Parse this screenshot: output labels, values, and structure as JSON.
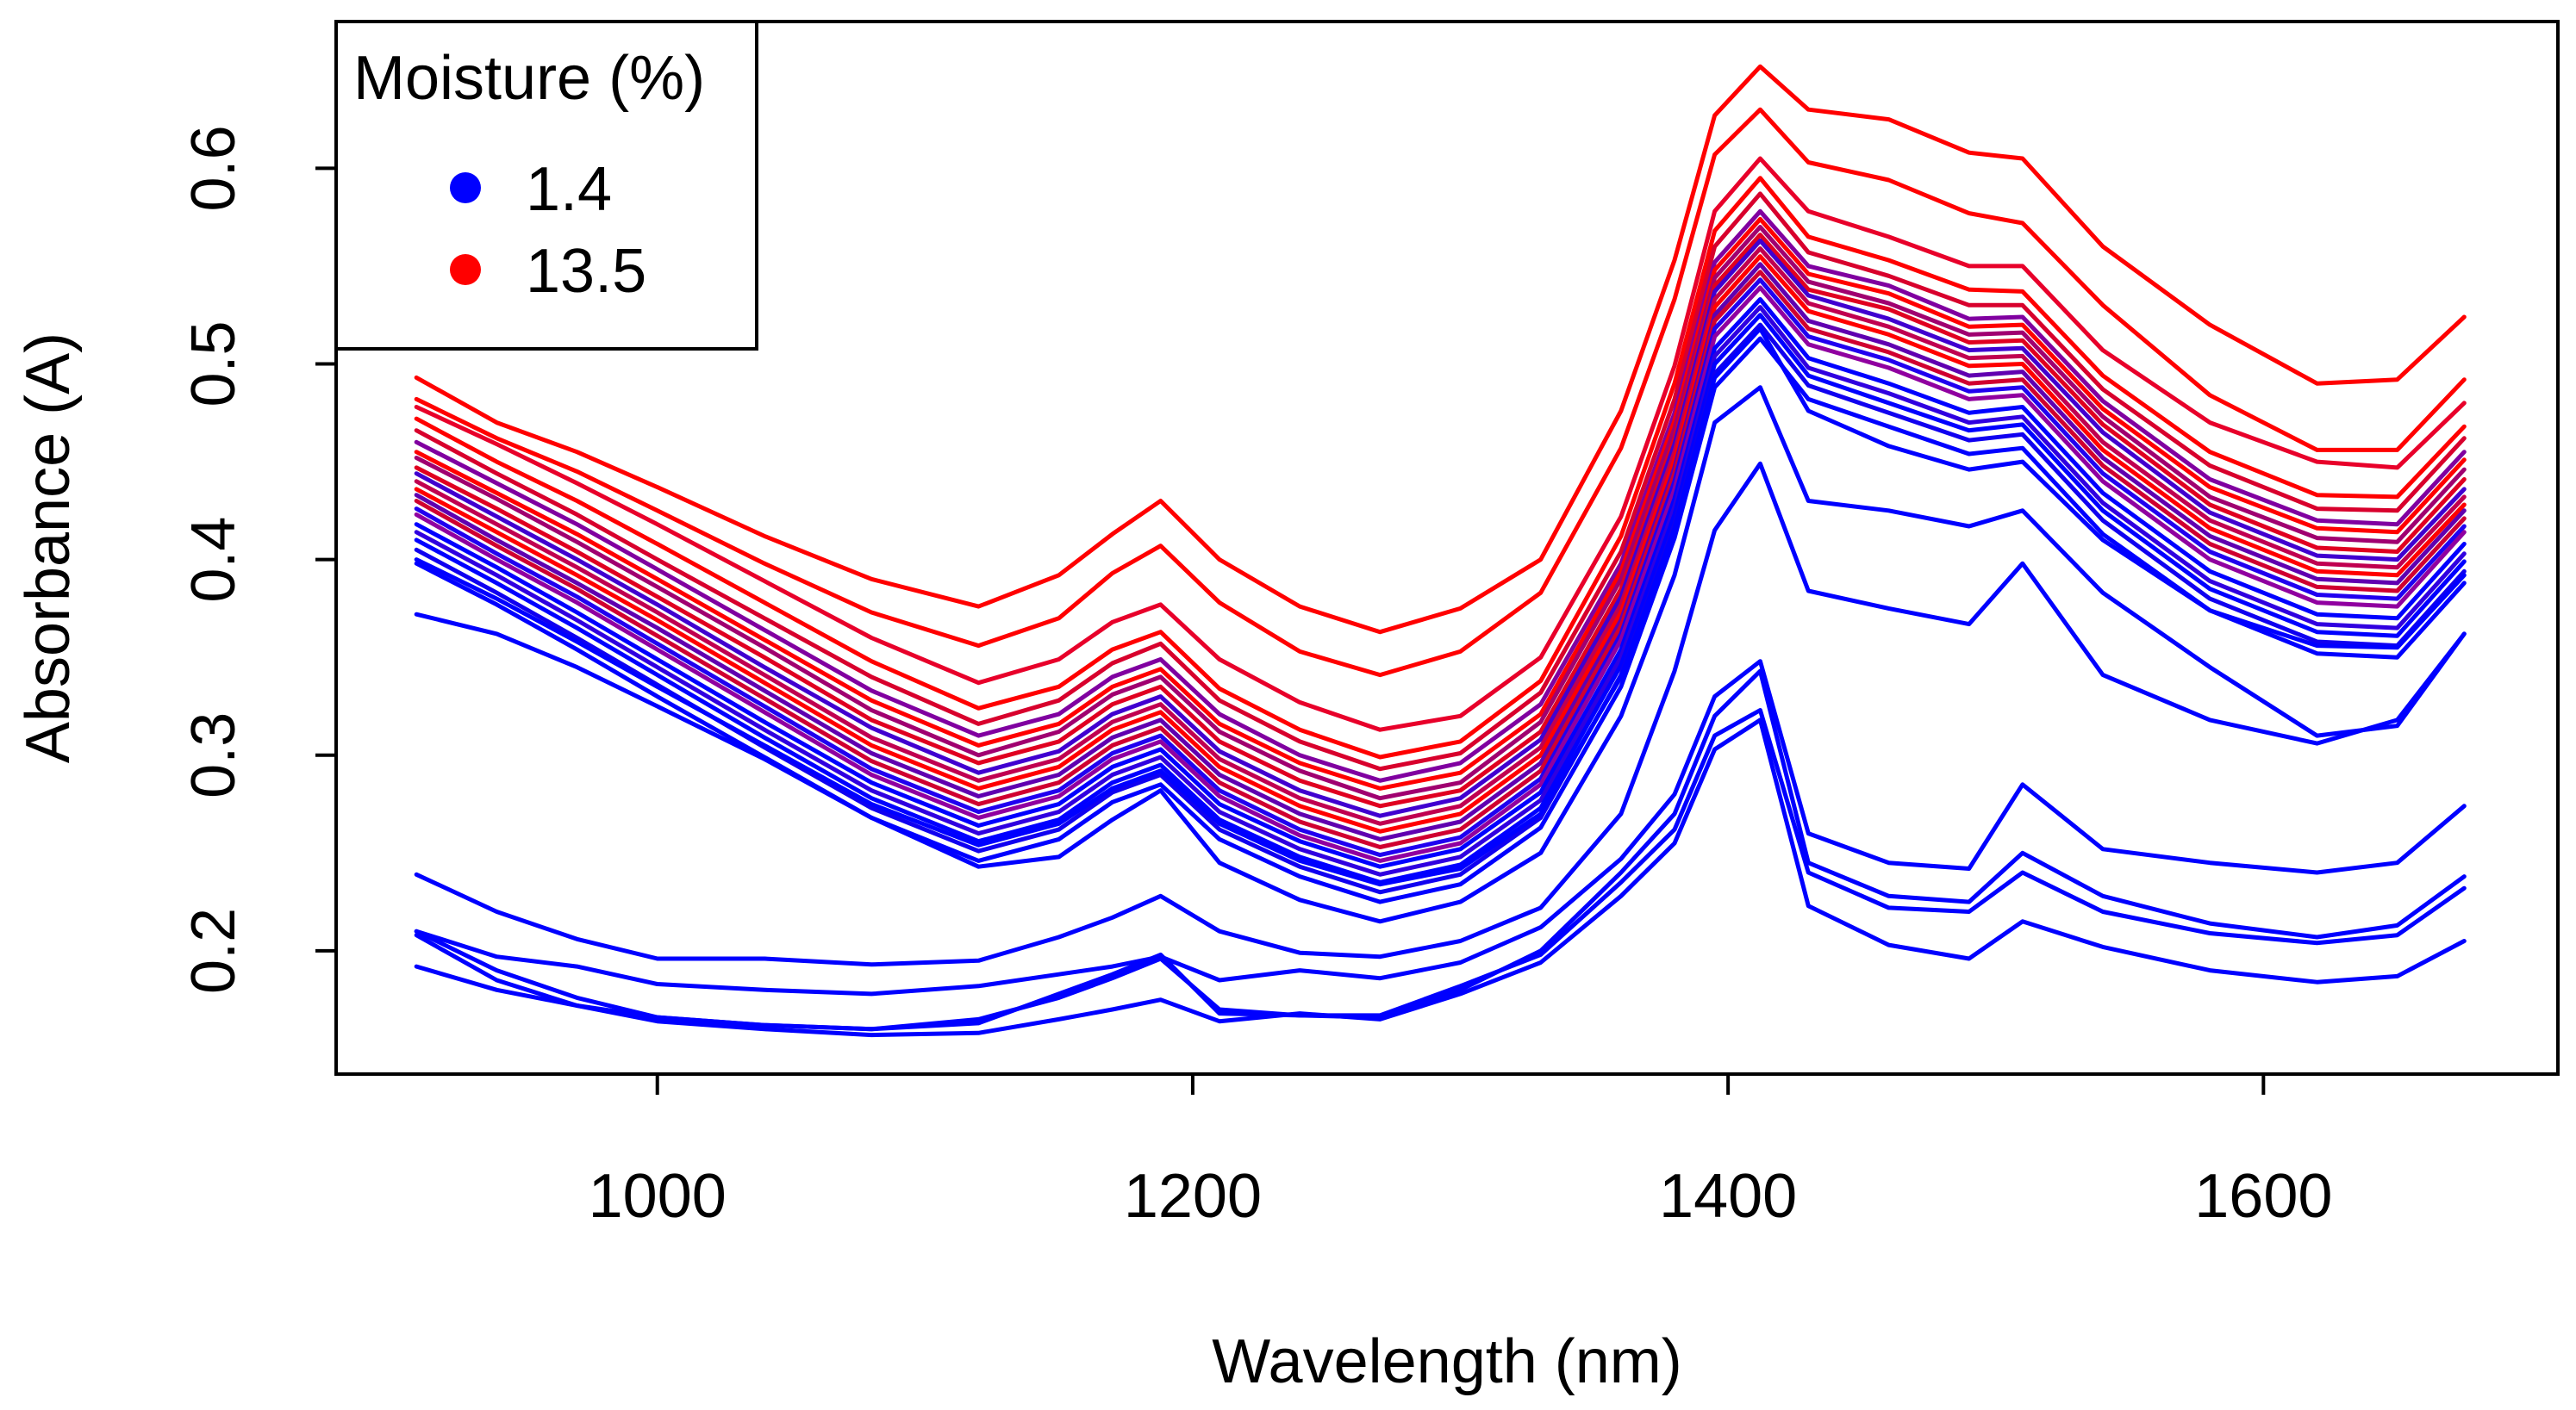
{
  "chart_data": {
    "type": "line",
    "xlabel": "Wavelength (nm)",
    "ylabel": "Absorbance (A)",
    "xlim": [
      880,
      1710
    ],
    "ylim": [
      0.137,
      0.675
    ],
    "xticks": [
      1000,
      1200,
      1400,
      1600
    ],
    "xtick_labels": [
      "1000",
      "1200",
      "1400",
      "1600"
    ],
    "yticks": [
      0.2,
      0.3,
      0.4,
      0.5,
      0.6
    ],
    "ytick_labels": [
      "0.2",
      "0.3",
      "0.4",
      "0.5",
      "0.6"
    ],
    "grid": false,
    "legend": {
      "title": "Moisture (%)",
      "placement": "top-left",
      "entries": [
        {
          "label": "1.4",
          "color": "#0000FF"
        },
        {
          "label": "13.5",
          "color": "#FF0000"
        }
      ]
    },
    "colors": {
      "low_moisture": "#0000FF",
      "high_moisture": "#FF0000"
    },
    "x": [
      910,
      940,
      970,
      1000,
      1040,
      1080,
      1120,
      1150,
      1170,
      1188,
      1210,
      1240,
      1270,
      1300,
      1330,
      1360,
      1380,
      1395,
      1412,
      1430,
      1460,
      1490,
      1510,
      1540,
      1580,
      1620,
      1650,
      1675
    ],
    "series": [
      {
        "color": "#FF0000",
        "values": [
          0.493,
          0.47,
          0.455,
          0.437,
          0.412,
          0.39,
          0.376,
          0.392,
          0.413,
          0.43,
          0.4,
          0.376,
          0.363,
          0.375,
          0.4,
          0.476,
          0.553,
          0.627,
          0.652,
          0.63,
          0.625,
          0.608,
          0.605,
          0.56,
          0.52,
          0.49,
          0.492,
          0.524
        ]
      },
      {
        "color": "#FF0000",
        "values": [
          0.482,
          0.462,
          0.445,
          0.425,
          0.398,
          0.373,
          0.356,
          0.37,
          0.393,
          0.407,
          0.378,
          0.353,
          0.341,
          0.353,
          0.383,
          0.457,
          0.533,
          0.607,
          0.63,
          0.603,
          0.594,
          0.577,
          0.572,
          0.53,
          0.484,
          0.456,
          0.456,
          0.492
        ]
      },
      {
        "color": "#E8002A",
        "values": [
          0.478,
          0.459,
          0.439,
          0.418,
          0.389,
          0.36,
          0.337,
          0.349,
          0.368,
          0.377,
          0.349,
          0.327,
          0.313,
          0.32,
          0.35,
          0.422,
          0.499,
          0.578,
          0.605,
          0.578,
          0.565,
          0.55,
          0.55,
          0.507,
          0.47,
          0.45,
          0.447,
          0.48
        ]
      },
      {
        "color": "#FF0000",
        "values": [
          0.472,
          0.45,
          0.43,
          0.408,
          0.378,
          0.348,
          0.324,
          0.335,
          0.354,
          0.363,
          0.334,
          0.313,
          0.299,
          0.307,
          0.338,
          0.412,
          0.49,
          0.568,
          0.595,
          0.565,
          0.553,
          0.538,
          0.537,
          0.494,
          0.455,
          0.433,
          0.432,
          0.468
        ]
      },
      {
        "color": "#D8002C",
        "values": [
          0.466,
          0.444,
          0.423,
          0.4,
          0.37,
          0.34,
          0.316,
          0.328,
          0.347,
          0.357,
          0.328,
          0.307,
          0.293,
          0.301,
          0.332,
          0.404,
          0.482,
          0.56,
          0.587,
          0.557,
          0.545,
          0.53,
          0.53,
          0.487,
          0.448,
          0.426,
          0.425,
          0.462
        ]
      },
      {
        "color": "#8000A0",
        "values": [
          0.46,
          0.439,
          0.418,
          0.395,
          0.364,
          0.333,
          0.31,
          0.321,
          0.34,
          0.349,
          0.321,
          0.3,
          0.287,
          0.296,
          0.326,
          0.398,
          0.475,
          0.552,
          0.578,
          0.55,
          0.54,
          0.523,
          0.524,
          0.481,
          0.441,
          0.42,
          0.418,
          0.455
        ]
      },
      {
        "color": "#FF0000",
        "values": [
          0.455,
          0.434,
          0.413,
          0.39,
          0.359,
          0.328,
          0.305,
          0.316,
          0.335,
          0.344,
          0.316,
          0.296,
          0.283,
          0.291,
          0.321,
          0.394,
          0.471,
          0.548,
          0.574,
          0.546,
          0.536,
          0.519,
          0.52,
          0.477,
          0.437,
          0.416,
          0.414,
          0.451
        ]
      },
      {
        "color": "#A00070",
        "values": [
          0.452,
          0.431,
          0.409,
          0.386,
          0.355,
          0.323,
          0.3,
          0.312,
          0.331,
          0.34,
          0.312,
          0.292,
          0.278,
          0.286,
          0.317,
          0.39,
          0.467,
          0.544,
          0.57,
          0.542,
          0.531,
          0.515,
          0.516,
          0.473,
          0.432,
          0.411,
          0.409,
          0.446
        ]
      },
      {
        "color": "#E00020",
        "values": [
          0.447,
          0.426,
          0.404,
          0.381,
          0.35,
          0.318,
          0.296,
          0.307,
          0.326,
          0.335,
          0.307,
          0.287,
          0.274,
          0.282,
          0.312,
          0.385,
          0.462,
          0.54,
          0.566,
          0.538,
          0.528,
          0.511,
          0.512,
          0.469,
          0.428,
          0.406,
          0.404,
          0.441
        ]
      },
      {
        "color": "#4000D0",
        "values": [
          0.444,
          0.422,
          0.4,
          0.377,
          0.345,
          0.314,
          0.291,
          0.302,
          0.321,
          0.33,
          0.302,
          0.282,
          0.269,
          0.278,
          0.308,
          0.381,
          0.459,
          0.537,
          0.563,
          0.535,
          0.523,
          0.507,
          0.508,
          0.465,
          0.424,
          0.402,
          0.4,
          0.436
        ]
      },
      {
        "color": "#C00050",
        "values": [
          0.44,
          0.418,
          0.396,
          0.373,
          0.341,
          0.309,
          0.287,
          0.298,
          0.317,
          0.326,
          0.298,
          0.278,
          0.265,
          0.274,
          0.304,
          0.377,
          0.455,
          0.533,
          0.559,
          0.531,
          0.519,
          0.503,
          0.504,
          0.46,
          0.42,
          0.398,
          0.396,
          0.432
        ]
      },
      {
        "color": "#FF0000",
        "values": [
          0.436,
          0.414,
          0.392,
          0.369,
          0.337,
          0.305,
          0.283,
          0.294,
          0.313,
          0.322,
          0.294,
          0.274,
          0.261,
          0.27,
          0.3,
          0.373,
          0.451,
          0.529,
          0.555,
          0.527,
          0.515,
          0.499,
          0.5,
          0.456,
          0.416,
          0.394,
          0.392,
          0.428
        ]
      },
      {
        "color": "#6000B0",
        "values": [
          0.433,
          0.41,
          0.388,
          0.365,
          0.333,
          0.301,
          0.279,
          0.29,
          0.309,
          0.318,
          0.29,
          0.27,
          0.257,
          0.266,
          0.296,
          0.369,
          0.447,
          0.525,
          0.551,
          0.522,
          0.51,
          0.494,
          0.496,
          0.452,
          0.412,
          0.39,
          0.388,
          0.425
        ]
      },
      {
        "color": "#D00030",
        "values": [
          0.43,
          0.407,
          0.385,
          0.361,
          0.329,
          0.297,
          0.275,
          0.286,
          0.305,
          0.314,
          0.286,
          0.266,
          0.253,
          0.262,
          0.292,
          0.366,
          0.444,
          0.522,
          0.547,
          0.518,
          0.506,
          0.49,
          0.492,
          0.448,
          0.408,
          0.386,
          0.384,
          0.421
        ]
      },
      {
        "color": "#2000F0",
        "values": [
          0.426,
          0.403,
          0.381,
          0.357,
          0.325,
          0.293,
          0.271,
          0.282,
          0.301,
          0.31,
          0.282,
          0.262,
          0.249,
          0.258,
          0.288,
          0.362,
          0.44,
          0.518,
          0.543,
          0.514,
          0.502,
          0.486,
          0.488,
          0.444,
          0.404,
          0.382,
          0.38,
          0.417
        ]
      },
      {
        "color": "#9000A0",
        "values": [
          0.423,
          0.4,
          0.378,
          0.354,
          0.322,
          0.29,
          0.268,
          0.279,
          0.298,
          0.307,
          0.279,
          0.259,
          0.246,
          0.255,
          0.285,
          0.359,
          0.436,
          0.514,
          0.539,
          0.51,
          0.498,
          0.482,
          0.484,
          0.44,
          0.4,
          0.378,
          0.376,
          0.414
        ]
      },
      {
        "color": "#0000FF",
        "values": [
          0.418,
          0.396,
          0.373,
          0.349,
          0.317,
          0.286,
          0.264,
          0.275,
          0.294,
          0.303,
          0.275,
          0.256,
          0.243,
          0.252,
          0.281,
          0.354,
          0.431,
          0.508,
          0.533,
          0.503,
          0.49,
          0.475,
          0.478,
          0.434,
          0.394,
          0.372,
          0.37,
          0.408
        ]
      },
      {
        "color": "#3000E0",
        "values": [
          0.414,
          0.392,
          0.369,
          0.345,
          0.313,
          0.282,
          0.26,
          0.271,
          0.29,
          0.299,
          0.271,
          0.252,
          0.239,
          0.248,
          0.277,
          0.35,
          0.427,
          0.504,
          0.529,
          0.498,
          0.485,
          0.47,
          0.473,
          0.429,
          0.389,
          0.367,
          0.365,
          0.403
        ]
      },
      {
        "color": "#0000FF",
        "values": [
          0.41,
          0.388,
          0.365,
          0.341,
          0.309,
          0.278,
          0.256,
          0.267,
          0.286,
          0.295,
          0.267,
          0.248,
          0.235,
          0.244,
          0.273,
          0.346,
          0.423,
          0.5,
          0.525,
          0.494,
          0.48,
          0.466,
          0.469,
          0.425,
          0.385,
          0.363,
          0.361,
          0.399
        ]
      },
      {
        "color": "#1000F0",
        "values": [
          0.405,
          0.383,
          0.36,
          0.336,
          0.304,
          0.273,
          0.251,
          0.262,
          0.281,
          0.29,
          0.262,
          0.243,
          0.23,
          0.239,
          0.268,
          0.341,
          0.418,
          0.495,
          0.52,
          0.489,
          0.475,
          0.461,
          0.464,
          0.42,
          0.38,
          0.358,
          0.356,
          0.394
        ]
      },
      {
        "color": "#0000FF",
        "values": [
          0.398,
          0.377,
          0.354,
          0.33,
          0.299,
          0.268,
          0.246,
          0.257,
          0.276,
          0.285,
          0.257,
          0.238,
          0.225,
          0.234,
          0.263,
          0.335,
          0.411,
          0.488,
          0.513,
          0.482,
          0.468,
          0.454,
          0.457,
          0.413,
          0.374,
          0.352,
          0.35,
          0.388
        ]
      },
      {
        "color": "#0000FF",
        "values": [
          0.4,
          0.38,
          0.358,
          0.335,
          0.305,
          0.275,
          0.254,
          0.265,
          0.283,
          0.292,
          0.265,
          0.246,
          0.234,
          0.242,
          0.27,
          0.34,
          0.416,
          0.493,
          0.518,
          0.476,
          0.458,
          0.446,
          0.45,
          0.41,
          0.374,
          0.356,
          0.355,
          0.392
        ]
      },
      {
        "color": "#0000FF",
        "values": [
          0.372,
          0.362,
          0.345,
          0.325,
          0.298,
          0.268,
          0.243,
          0.248,
          0.267,
          0.282,
          0.245,
          0.226,
          0.215,
          0.225,
          0.25,
          0.32,
          0.392,
          0.47,
          0.488,
          0.43,
          0.425,
          0.417,
          0.425,
          0.383,
          0.345,
          0.31,
          0.315,
          0.362
        ]
      },
      {
        "color": "#0000FF",
        "values": [
          0.239,
          0.22,
          0.206,
          0.196,
          0.196,
          0.193,
          0.195,
          0.207,
          0.217,
          0.228,
          0.21,
          0.199,
          0.197,
          0.205,
          0.222,
          0.27,
          0.343,
          0.415,
          0.449,
          0.384,
          0.375,
          0.367,
          0.398,
          0.341,
          0.318,
          0.306,
          0.318,
          0.362
        ]
      },
      {
        "color": "#0000FF",
        "values": [
          0.21,
          0.197,
          0.192,
          0.183,
          0.18,
          0.178,
          0.182,
          0.188,
          0.192,
          0.197,
          0.185,
          0.19,
          0.186,
          0.194,
          0.212,
          0.247,
          0.28,
          0.33,
          0.348,
          0.26,
          0.245,
          0.242,
          0.285,
          0.252,
          0.245,
          0.24,
          0.245,
          0.274
        ]
      },
      {
        "color": "#0000FF",
        "values": [
          0.21,
          0.19,
          0.176,
          0.166,
          0.162,
          0.16,
          0.163,
          0.178,
          0.188,
          0.198,
          0.168,
          0.167,
          0.166,
          0.18,
          0.2,
          0.24,
          0.27,
          0.32,
          0.343,
          0.245,
          0.228,
          0.225,
          0.25,
          0.228,
          0.214,
          0.207,
          0.213,
          0.238
        ]
      },
      {
        "color": "#0000FF",
        "values": [
          0.208,
          0.185,
          0.172,
          0.166,
          0.162,
          0.16,
          0.165,
          0.176,
          0.186,
          0.196,
          0.17,
          0.167,
          0.167,
          0.182,
          0.198,
          0.235,
          0.262,
          0.31,
          0.323,
          0.24,
          0.222,
          0.22,
          0.24,
          0.22,
          0.209,
          0.204,
          0.208,
          0.232
        ]
      },
      {
        "color": "#0000FF",
        "values": [
          0.192,
          0.18,
          0.172,
          0.164,
          0.16,
          0.157,
          0.158,
          0.165,
          0.17,
          0.175,
          0.164,
          0.168,
          0.165,
          0.178,
          0.194,
          0.228,
          0.255,
          0.303,
          0.318,
          0.223,
          0.203,
          0.196,
          0.215,
          0.202,
          0.19,
          0.184,
          0.187,
          0.205
        ]
      }
    ]
  }
}
